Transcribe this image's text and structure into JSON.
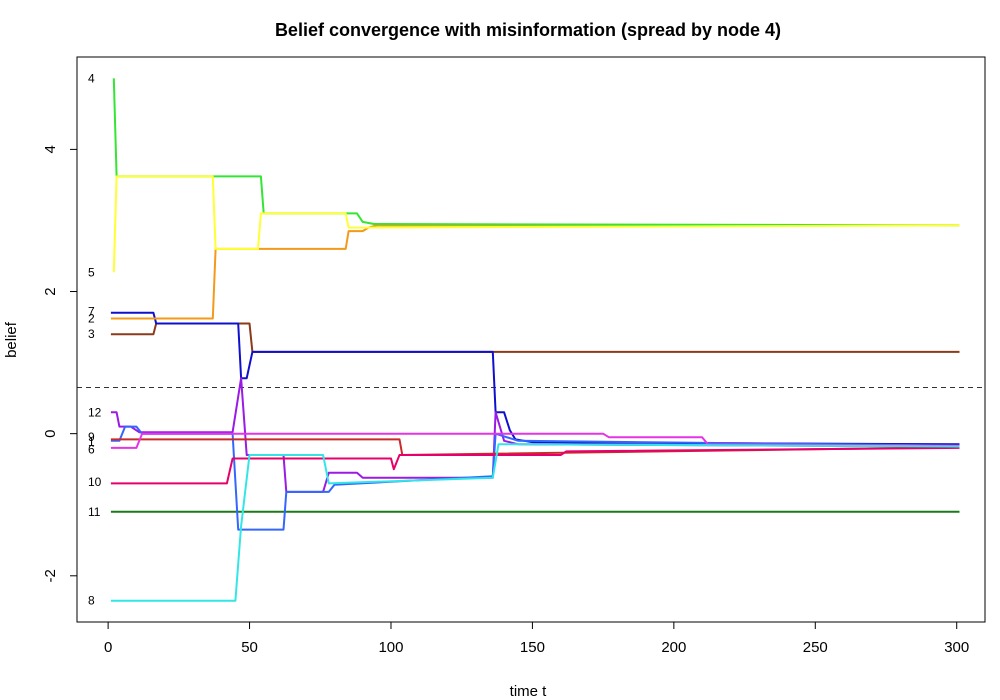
{
  "chart_data": {
    "type": "line",
    "title": "Belief convergence with misinformation (spread by node 4)",
    "xlabel": "time t",
    "ylabel": "belief",
    "xlim": [
      -11,
      310
    ],
    "ylim": [
      -2.65,
      5.3
    ],
    "xticks": [
      0,
      50,
      100,
      150,
      200,
      250,
      300
    ],
    "yticks": [
      -2,
      0,
      2,
      4
    ],
    "grid": false,
    "legend": "none",
    "reference_line": {
      "y": 0.65,
      "style": "dashed",
      "color": "#333333"
    },
    "series": [
      {
        "name": "11",
        "color": "#1a7a1a",
        "label_y": -1.1,
        "points": [
          [
            1,
            -1.1
          ],
          [
            301,
            -1.1
          ]
        ]
      },
      {
        "name": "3",
        "color": "#8B3A1A",
        "label_y": 1.4,
        "points": [
          [
            1,
            1.4
          ],
          [
            16,
            1.4
          ],
          [
            17,
            1.55
          ],
          [
            50,
            1.55
          ],
          [
            51,
            1.15
          ],
          [
            301,
            1.15
          ]
        ]
      },
      {
        "name": "7",
        "color": "#1010cc",
        "label_y": 1.72,
        "points": [
          [
            1,
            1.7
          ],
          [
            16,
            1.7
          ],
          [
            17,
            1.55
          ],
          [
            46,
            1.55
          ],
          [
            47,
            0.78
          ],
          [
            49,
            0.78
          ],
          [
            51,
            1.15
          ],
          [
            136,
            1.15
          ],
          [
            137,
            0.3
          ],
          [
            140,
            0.3
          ],
          [
            142,
            0.05
          ],
          [
            144,
            -0.08
          ],
          [
            150,
            -0.12
          ],
          [
            301,
            -0.15
          ]
        ]
      },
      {
        "name": "2",
        "color": "#f39a1a",
        "label_y": 1.62,
        "points": [
          [
            1,
            1.62
          ],
          [
            37,
            1.62
          ],
          [
            38,
            2.6
          ],
          [
            84,
            2.6
          ],
          [
            85,
            2.85
          ],
          [
            90,
            2.85
          ],
          [
            92,
            2.9
          ],
          [
            95,
            2.93
          ],
          [
            301,
            2.93
          ]
        ]
      },
      {
        "name": "4",
        "color": "#33e633",
        "label_y": 5.0,
        "points": [
          [
            2,
            5.0
          ],
          [
            3,
            3.62
          ],
          [
            54,
            3.62
          ],
          [
            55,
            3.1
          ],
          [
            88,
            3.1
          ],
          [
            90,
            2.98
          ],
          [
            94,
            2.95
          ],
          [
            301,
            2.93
          ]
        ]
      },
      {
        "name": "5",
        "color": "#ffff33",
        "label_y": 2.27,
        "points": [
          [
            2,
            2.27
          ],
          [
            3,
            3.62
          ],
          [
            37,
            3.62
          ],
          [
            38,
            2.6
          ],
          [
            53,
            2.6
          ],
          [
            54,
            3.1
          ],
          [
            84,
            3.1
          ],
          [
            85,
            2.9
          ],
          [
            301,
            2.93
          ]
        ]
      },
      {
        "name": "12",
        "color": "#9a1ae6",
        "label_y": 0.3,
        "points": [
          [
            1,
            0.3
          ],
          [
            3,
            0.3
          ],
          [
            4,
            0.1
          ],
          [
            8,
            0.1
          ],
          [
            11,
            0.02
          ],
          [
            44,
            0.02
          ],
          [
            47,
            0.78
          ],
          [
            49,
            -0.3
          ],
          [
            62,
            -0.3
          ],
          [
            63,
            -0.82
          ],
          [
            76,
            -0.82
          ],
          [
            78,
            -0.55
          ],
          [
            88,
            -0.55
          ],
          [
            90,
            -0.62
          ],
          [
            136,
            -0.62
          ],
          [
            137,
            0.3
          ],
          [
            140,
            -0.1
          ],
          [
            145,
            -0.15
          ],
          [
            301,
            -0.18
          ]
        ]
      },
      {
        "name": "9",
        "color": "#3366ff",
        "label_y": -0.05,
        "points": [
          [
            1,
            -0.1
          ],
          [
            4,
            -0.1
          ],
          [
            6,
            0.1
          ],
          [
            10,
            0.1
          ],
          [
            12,
            0.0
          ],
          [
            44,
            0.0
          ],
          [
            46,
            -1.35
          ],
          [
            62,
            -1.35
          ],
          [
            63,
            -0.82
          ],
          [
            78,
            -0.82
          ],
          [
            80,
            -0.72
          ],
          [
            136,
            -0.6
          ],
          [
            137,
            0.0
          ],
          [
            145,
            -0.1
          ],
          [
            301,
            -0.17
          ]
        ]
      },
      {
        "name": "1",
        "color": "#cc2a2a",
        "label_y": -0.12,
        "points": [
          [
            1,
            -0.08
          ],
          [
            103,
            -0.08
          ],
          [
            104,
            -0.3
          ],
          [
            301,
            -0.19
          ]
        ]
      },
      {
        "name": "6",
        "color": "#e633e6",
        "label_y": -0.22,
        "points": [
          [
            1,
            -0.2
          ],
          [
            10,
            -0.2
          ],
          [
            12,
            0.0
          ],
          [
            175,
            0.0
          ],
          [
            177,
            -0.05
          ],
          [
            210,
            -0.05
          ],
          [
            212,
            -0.15
          ],
          [
            301,
            -0.17
          ]
        ]
      },
      {
        "name": "10",
        "color": "#e6006b",
        "label_y": -0.68,
        "points": [
          [
            1,
            -0.7
          ],
          [
            42,
            -0.7
          ],
          [
            44,
            -0.35
          ],
          [
            100,
            -0.35
          ],
          [
            101,
            -0.5
          ],
          [
            103,
            -0.3
          ],
          [
            160,
            -0.3
          ],
          [
            162,
            -0.25
          ],
          [
            301,
            -0.2
          ]
        ]
      },
      {
        "name": "8",
        "color": "#33e6e6",
        "label_y": -2.35,
        "points": [
          [
            1,
            -2.35
          ],
          [
            45,
            -2.35
          ],
          [
            47,
            -1.3
          ],
          [
            50,
            -0.3
          ],
          [
            76,
            -0.3
          ],
          [
            78,
            -0.7
          ],
          [
            136,
            -0.62
          ],
          [
            138,
            -0.15
          ],
          [
            150,
            -0.15
          ],
          [
            301,
            -0.18
          ]
        ]
      }
    ]
  }
}
